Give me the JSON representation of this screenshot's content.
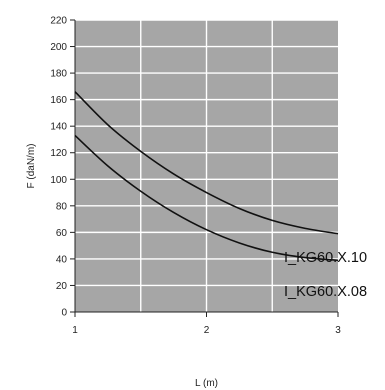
{
  "chart_data": {
    "type": "line",
    "xlabel": "L (m)",
    "ylabel": "F (daN/m)",
    "xlim": [
      1,
      3
    ],
    "ylim": [
      0,
      220
    ],
    "x_ticks": [
      1,
      2,
      3
    ],
    "y_ticks": [
      0,
      20,
      40,
      60,
      80,
      100,
      120,
      140,
      160,
      180,
      200,
      220
    ],
    "x_grid": [
      1.5,
      2,
      2.5
    ],
    "grid": true,
    "legend": "series labels at right end of lines",
    "colors": {
      "plot_background": "#a6a6a6",
      "grid": "#ffffff",
      "line": "#111111"
    },
    "series": [
      {
        "name": "I_KG60.X.10",
        "x": [
          1.0,
          1.25,
          1.5,
          1.75,
          2.0,
          2.25,
          2.5,
          2.75,
          3.0
        ],
        "y": [
          166,
          141,
          121,
          104,
          90,
          78,
          69,
          63,
          59
        ]
      },
      {
        "name": "I_KG60.X.08",
        "x": [
          1.0,
          1.25,
          1.5,
          1.75,
          2.0,
          2.25,
          2.5,
          2.75,
          3.0
        ],
        "y": [
          133,
          110,
          91,
          75,
          62,
          52,
          45,
          41,
          39
        ]
      }
    ]
  }
}
